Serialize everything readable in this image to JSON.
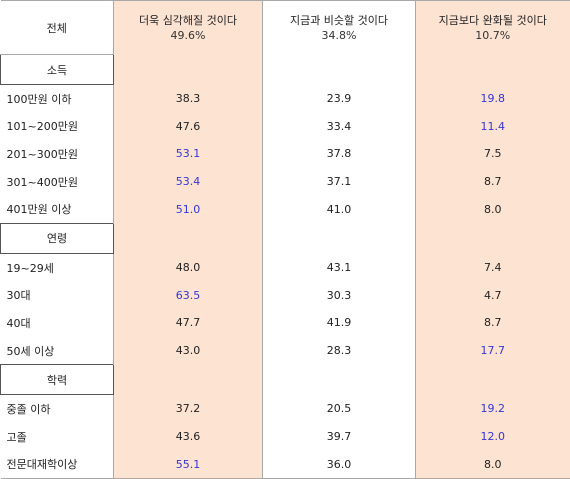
{
  "header": {
    "label": "전체",
    "columns": [
      {
        "title": "더욱 심각해질 것이다",
        "total": "49.6%"
      },
      {
        "title": "지금과 비슷할 것이다",
        "total": "34.8%"
      },
      {
        "title": "지금보다 완화될 것이다",
        "total": "10.7%"
      }
    ]
  },
  "sections": [
    {
      "title": "소득",
      "rows": [
        {
          "label": "100만원 이하",
          "values": [
            "38.3",
            "23.9",
            "19.8"
          ]
        },
        {
          "label": "101~200만원",
          "values": [
            "47.6",
            "33.4",
            "11.4"
          ]
        },
        {
          "label": "201~300만원",
          "values": [
            "53.1",
            "37.8",
            "7.5"
          ]
        },
        {
          "label": "301~400만원",
          "values": [
            "53.4",
            "37.1",
            "8.7"
          ]
        },
        {
          "label": "401만원 이상",
          "values": [
            "51.0",
            "41.0",
            "8.0"
          ]
        }
      ]
    },
    {
      "title": "연령",
      "rows": [
        {
          "label": "19~29세",
          "values": [
            "48.0",
            "43.1",
            "7.4"
          ]
        },
        {
          "label": "30대",
          "values": [
            "63.5",
            "30.3",
            "4.7"
          ]
        },
        {
          "label": "40대",
          "values": [
            "47.7",
            "41.9",
            "8.7"
          ]
        },
        {
          "label": "50세 이상",
          "values": [
            "43.0",
            "28.3",
            "17.7"
          ]
        }
      ]
    },
    {
      "title": "학력",
      "rows": [
        {
          "label": "중졸 이하",
          "values": [
            "37.2",
            "20.5",
            "19.2"
          ]
        },
        {
          "label": "고졸",
          "values": [
            "43.6",
            "39.7",
            "12.0"
          ]
        },
        {
          "label": "전문대재학이상",
          "values": [
            "55.1",
            "36.0",
            "8.0"
          ]
        }
      ]
    }
  ],
  "colors": {
    "shade": "#fde3d2",
    "highlight": "#3535d8"
  }
}
